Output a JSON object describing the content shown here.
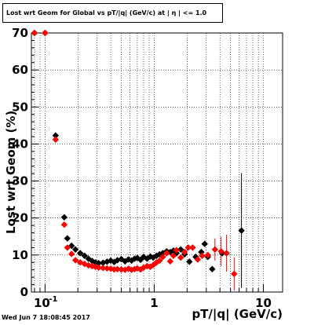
{
  "timestamp": "Wed Jun  7 18:08:45 2017",
  "chart_data": {
    "type": "scatter",
    "title": "Lost wrt Geom for Global vs pT/|q| (GeV/c) at |  η | <= 1.0",
    "xlabel": "pT/|q| (GeV/c)",
    "ylabel": "Lost  wrt  Geom (%)",
    "xscale": "log",
    "xlim": [
      0.075,
      15
    ],
    "ylim": [
      0,
      70
    ],
    "grid": true,
    "x_ticks": [
      {
        "value": 0.1,
        "label": "10",
        "exp": "-1"
      },
      {
        "value": 1,
        "label": "1",
        "exp": ""
      },
      {
        "value": 10,
        "label": "10",
        "exp": ""
      }
    ],
    "y_ticks": [
      {
        "value": 0,
        "label": "0"
      },
      {
        "value": 10,
        "label": "10"
      },
      {
        "value": 20,
        "label": "20"
      },
      {
        "value": 30,
        "label": "30"
      },
      {
        "value": 40,
        "label": "40"
      },
      {
        "value": 50,
        "label": "50"
      },
      {
        "value": 60,
        "label": "60"
      },
      {
        "value": 70,
        "label": "70"
      }
    ],
    "series": [
      {
        "color": "#000000",
        "points": [
          {
            "x": 0.08,
            "y": 70
          },
          {
            "x": 0.1,
            "y": 70
          },
          {
            "x": 0.125,
            "y": 42.3
          },
          {
            "x": 0.15,
            "y": 20.2
          },
          {
            "x": 0.16,
            "y": 14.5
          },
          {
            "x": 0.175,
            "y": 12.5
          },
          {
            "x": 0.19,
            "y": 11.5
          },
          {
            "x": 0.21,
            "y": 10.5
          },
          {
            "x": 0.23,
            "y": 9.8
          },
          {
            "x": 0.25,
            "y": 9
          },
          {
            "x": 0.27,
            "y": 8.4
          },
          {
            "x": 0.29,
            "y": 8
          },
          {
            "x": 0.31,
            "y": 7.8
          },
          {
            "x": 0.34,
            "y": 7.9
          },
          {
            "x": 0.37,
            "y": 8.2
          },
          {
            "x": 0.4,
            "y": 8.5
          },
          {
            "x": 0.43,
            "y": 8.1
          },
          {
            "x": 0.46,
            "y": 8.6
          },
          {
            "x": 0.5,
            "y": 8.9
          },
          {
            "x": 0.54,
            "y": 8.3
          },
          {
            "x": 0.58,
            "y": 8.8
          },
          {
            "x": 0.62,
            "y": 8.5
          },
          {
            "x": 0.66,
            "y": 9
          },
          {
            "x": 0.7,
            "y": 9.2
          },
          {
            "x": 0.75,
            "y": 8.7
          },
          {
            "x": 0.8,
            "y": 9.5
          },
          {
            "x": 0.86,
            "y": 9
          },
          {
            "x": 0.92,
            "y": 9.6
          },
          {
            "x": 0.98,
            "y": 9.3
          },
          {
            "x": 1.05,
            "y": 9.8
          },
          {
            "x": 1.12,
            "y": 10.2
          },
          {
            "x": 1.2,
            "y": 10.5
          },
          {
            "x": 1.3,
            "y": 11
          },
          {
            "x": 1.4,
            "y": 10.8
          },
          {
            "x": 1.5,
            "y": 11.2
          },
          {
            "x": 1.6,
            "y": 10.5
          },
          {
            "x": 1.75,
            "y": 11.5
          },
          {
            "x": 1.9,
            "y": 10.2
          },
          {
            "x": 2.1,
            "y": 8.2
          },
          {
            "x": 2.4,
            "y": 9.5
          },
          {
            "x": 2.7,
            "y": 10.8
          },
          {
            "x": 2.9,
            "y": 13
          },
          {
            "x": 3.1,
            "y": 9.5
          },
          {
            "x": 3.4,
            "y": 6.2
          },
          {
            "x": 4.2,
            "y": 10.5
          },
          {
            "x": 6.3,
            "y": 16.6,
            "err": 15.5
          }
        ]
      },
      {
        "color": "#ff0000",
        "points": [
          {
            "x": 0.08,
            "y": 70
          },
          {
            "x": 0.1,
            "y": 70
          },
          {
            "x": 0.125,
            "y": 41.2
          },
          {
            "x": 0.15,
            "y": 18.2
          },
          {
            "x": 0.16,
            "y": 12
          },
          {
            "x": 0.175,
            "y": 10.3
          },
          {
            "x": 0.19,
            "y": 8.6
          },
          {
            "x": 0.21,
            "y": 8
          },
          {
            "x": 0.23,
            "y": 7.6
          },
          {
            "x": 0.25,
            "y": 7.2
          },
          {
            "x": 0.27,
            "y": 7
          },
          {
            "x": 0.29,
            "y": 6.8
          },
          {
            "x": 0.31,
            "y": 6.6
          },
          {
            "x": 0.34,
            "y": 6.5
          },
          {
            "x": 0.37,
            "y": 6.4
          },
          {
            "x": 0.4,
            "y": 6.3
          },
          {
            "x": 0.43,
            "y": 6.1
          },
          {
            "x": 0.46,
            "y": 6.2
          },
          {
            "x": 0.5,
            "y": 6.1
          },
          {
            "x": 0.54,
            "y": 6
          },
          {
            "x": 0.58,
            "y": 6.3
          },
          {
            "x": 0.62,
            "y": 6
          },
          {
            "x": 0.66,
            "y": 6.2
          },
          {
            "x": 0.7,
            "y": 6.4
          },
          {
            "x": 0.75,
            "y": 6.1
          },
          {
            "x": 0.8,
            "y": 6.6
          },
          {
            "x": 0.86,
            "y": 7
          },
          {
            "x": 0.92,
            "y": 6.8
          },
          {
            "x": 0.98,
            "y": 7.3
          },
          {
            "x": 1.05,
            "y": 8
          },
          {
            "x": 1.12,
            "y": 8.5
          },
          {
            "x": 1.2,
            "y": 9.5
          },
          {
            "x": 1.3,
            "y": 10.5
          },
          {
            "x": 1.4,
            "y": 8.3
          },
          {
            "x": 1.5,
            "y": 9.8
          },
          {
            "x": 1.6,
            "y": 11.3
          },
          {
            "x": 1.75,
            "y": 9.3
          },
          {
            "x": 1.9,
            "y": 10.8
          },
          {
            "x": 2.05,
            "y": 12
          },
          {
            "x": 2.25,
            "y": 12
          },
          {
            "x": 2.5,
            "y": 8.8
          },
          {
            "x": 2.75,
            "y": 9.8
          },
          {
            "x": 3.1,
            "y": 10
          },
          {
            "x": 3.6,
            "y": 11.5,
            "err": 3
          },
          {
            "x": 4.1,
            "y": 11,
            "err": 4
          },
          {
            "x": 4.6,
            "y": 10.5,
            "err": 5
          },
          {
            "x": 5.4,
            "y": 4.9,
            "err": 4.5
          }
        ]
      }
    ]
  }
}
